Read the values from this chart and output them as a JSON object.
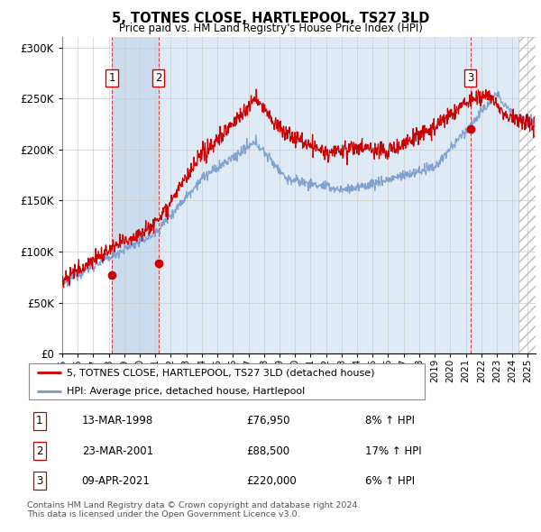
{
  "title": "5, TOTNES CLOSE, HARTLEPOOL, TS27 3LD",
  "subtitle": "Price paid vs. HM Land Registry's House Price Index (HPI)",
  "legend_line1": "5, TOTNES CLOSE, HARTLEPOOL, TS27 3LD (detached house)",
  "legend_line2": "HPI: Average price, detached house, Hartlepool",
  "footer1": "Contains HM Land Registry data © Crown copyright and database right 2024.",
  "footer2": "This data is licensed under the Open Government Licence v3.0.",
  "sale_markers": [
    {
      "num": 1,
      "date": "13-MAR-1998",
      "price": 76950,
      "x_year": 1998.2,
      "price_y": 76950,
      "hpi_pct": "8% ↑ HPI"
    },
    {
      "num": 2,
      "date": "23-MAR-2001",
      "price": 88500,
      "x_year": 2001.2,
      "price_y": 88500,
      "hpi_pct": "17% ↑ HPI"
    },
    {
      "num": 3,
      "date": "09-APR-2021",
      "price": 220000,
      "x_year": 2021.3,
      "price_y": 220000,
      "hpi_pct": "6% ↑ HPI"
    }
  ],
  "ylim": [
    0,
    310000
  ],
  "xlim_start": 1995.0,
  "xlim_end": 2025.5,
  "hpi_color": "#7799cc",
  "price_color": "#cc0000",
  "shade_color_dark": "#ccdcef",
  "shade_color_light": "#deeaf5",
  "marker_box_color": "#cc0000",
  "hatched_region_start": 2024.42
}
